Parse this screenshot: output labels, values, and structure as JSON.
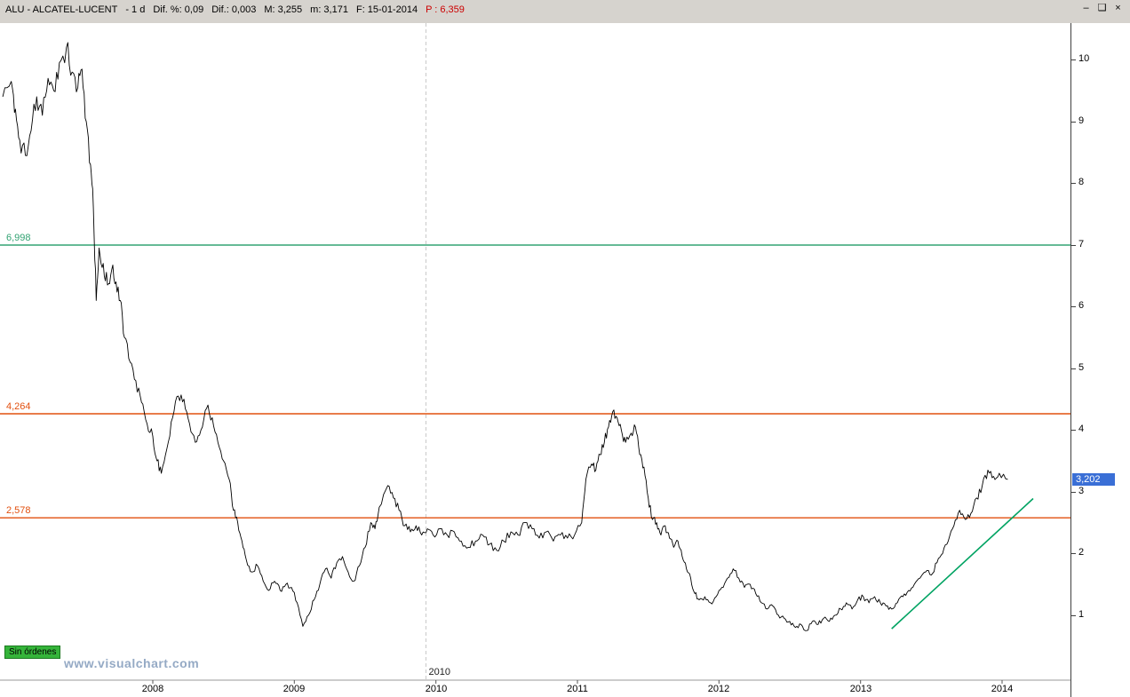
{
  "title_bar": {
    "segments": [
      {
        "name": "symbol-title",
        "text": "ALU - ALCATEL-LUCENT",
        "color": "#000000"
      },
      {
        "name": "timeframe",
        "text": "-  1 d",
        "color": "#000000"
      },
      {
        "name": "dif-pct",
        "text": "Dif. %: 0,09",
        "color": "#000000"
      },
      {
        "name": "dif-abs",
        "text": "Dif.: 0,003",
        "color": "#000000"
      },
      {
        "name": "max-value",
        "text": "M: 3,255",
        "color": "#000000"
      },
      {
        "name": "min-value",
        "text": "m: 3,171",
        "color": "#000000"
      },
      {
        "name": "date-value",
        "text": "F: 15-01-2014",
        "color": "#000000"
      },
      {
        "name": "p-value",
        "text": "P : 6,359",
        "color": "#cc0000"
      }
    ],
    "window_controls": [
      {
        "name": "minimize",
        "glyph": "–"
      },
      {
        "name": "maximize",
        "glyph": "❑"
      },
      {
        "name": "close",
        "glyph": "×"
      }
    ]
  },
  "status": {
    "orders_label": "Sin órdenes",
    "watermark": "www.visualchart.com"
  },
  "chart_data": {
    "type": "line",
    "title": "ALU - ALCATEL-LUCENT",
    "timeframe": "1 d",
    "last_price": "3,202",
    "last_price_value": 3.202,
    "last_price_badge_color": "#3a6fd6",
    "x_axis": {
      "labels": [
        "2008",
        "2009",
        "2010",
        "2011",
        "2012",
        "2013",
        "2014"
      ],
      "range": [
        2006.94,
        2014.45
      ]
    },
    "y_axis": {
      "ticks": [
        1,
        2,
        3,
        4,
        5,
        6,
        7,
        8,
        9,
        10
      ],
      "range": [
        0,
        10.55
      ],
      "side": "right"
    },
    "horizontal_levels": [
      {
        "label": "6,998",
        "value": 6.998,
        "color": "#33a373"
      },
      {
        "label": "4,264",
        "value": 4.264,
        "color": "#e2500f"
      },
      {
        "label": "2,578",
        "value": 2.578,
        "color": "#e2500f"
      }
    ],
    "vertical_marker": {
      "label": "2010",
      "x": 2009.93
    },
    "trendline": {
      "color": "#00a362",
      "from": [
        2013.22,
        0.78
      ],
      "to": [
        2014.22,
        2.89
      ]
    },
    "series": [
      {
        "name": "ALU daily close",
        "color": "#000000",
        "points": [
          [
            2006.94,
            9.4
          ],
          [
            2007.0,
            9.65
          ],
          [
            2007.03,
            9.2
          ],
          [
            2007.06,
            8.7
          ],
          [
            2007.1,
            8.45
          ],
          [
            2007.14,
            8.85
          ],
          [
            2007.18,
            9.4
          ],
          [
            2007.22,
            9.1
          ],
          [
            2007.26,
            9.7
          ],
          [
            2007.3,
            9.5
          ],
          [
            2007.34,
            9.95
          ],
          [
            2007.39,
            10.2
          ],
          [
            2007.43,
            9.8
          ],
          [
            2007.47,
            9.55
          ],
          [
            2007.5,
            9.85
          ],
          [
            2007.53,
            9.0
          ],
          [
            2007.56,
            8.3
          ],
          [
            2007.58,
            7.6
          ],
          [
            2007.6,
            6.1
          ],
          [
            2007.62,
            6.95
          ],
          [
            2007.65,
            6.7
          ],
          [
            2007.68,
            6.35
          ],
          [
            2007.71,
            6.6
          ],
          [
            2007.74,
            6.4
          ],
          [
            2007.77,
            6.1
          ],
          [
            2007.8,
            5.5
          ],
          [
            2007.84,
            5.1
          ],
          [
            2007.88,
            4.8
          ],
          [
            2007.92,
            4.45
          ],
          [
            2007.96,
            4.1
          ],
          [
            2008.0,
            3.9
          ],
          [
            2008.03,
            3.5
          ],
          [
            2008.06,
            3.3
          ],
          [
            2008.1,
            3.7
          ],
          [
            2008.14,
            4.2
          ],
          [
            2008.18,
            4.55
          ],
          [
            2008.22,
            4.5
          ],
          [
            2008.26,
            4.1
          ],
          [
            2008.3,
            3.8
          ],
          [
            2008.34,
            4.0
          ],
          [
            2008.38,
            4.35
          ],
          [
            2008.42,
            4.2
          ],
          [
            2008.46,
            3.8
          ],
          [
            2008.5,
            3.5
          ],
          [
            2008.54,
            3.2
          ],
          [
            2008.57,
            2.7
          ],
          [
            2008.6,
            2.5
          ],
          [
            2008.63,
            2.2
          ],
          [
            2008.66,
            1.9
          ],
          [
            2008.7,
            1.7
          ],
          [
            2008.74,
            1.8
          ],
          [
            2008.78,
            1.55
          ],
          [
            2008.82,
            1.4
          ],
          [
            2008.86,
            1.55
          ],
          [
            2008.9,
            1.4
          ],
          [
            2008.94,
            1.5
          ],
          [
            2008.98,
            1.45
          ],
          [
            2009.02,
            1.2
          ],
          [
            2009.06,
            0.82
          ],
          [
            2009.1,
            1.0
          ],
          [
            2009.14,
            1.25
          ],
          [
            2009.18,
            1.5
          ],
          [
            2009.22,
            1.75
          ],
          [
            2009.26,
            1.6
          ],
          [
            2009.3,
            1.85
          ],
          [
            2009.34,
            1.95
          ],
          [
            2009.38,
            1.7
          ],
          [
            2009.42,
            1.55
          ],
          [
            2009.46,
            1.8
          ],
          [
            2009.5,
            2.1
          ],
          [
            2009.54,
            2.5
          ],
          [
            2009.57,
            2.4
          ],
          [
            2009.6,
            2.75
          ],
          [
            2009.66,
            3.1
          ],
          [
            2009.7,
            2.9
          ],
          [
            2009.74,
            2.7
          ],
          [
            2009.78,
            2.45
          ],
          [
            2009.82,
            2.35
          ],
          [
            2009.86,
            2.45
          ],
          [
            2009.9,
            2.3
          ],
          [
            2009.94,
            2.4
          ],
          [
            2009.98,
            2.3
          ],
          [
            2010.03,
            2.4
          ],
          [
            2010.08,
            2.3
          ],
          [
            2010.13,
            2.35
          ],
          [
            2010.18,
            2.2
          ],
          [
            2010.23,
            2.1
          ],
          [
            2010.28,
            2.2
          ],
          [
            2010.33,
            2.3
          ],
          [
            2010.38,
            2.15
          ],
          [
            2010.43,
            2.05
          ],
          [
            2010.48,
            2.2
          ],
          [
            2010.53,
            2.35
          ],
          [
            2010.58,
            2.3
          ],
          [
            2010.63,
            2.5
          ],
          [
            2010.68,
            2.4
          ],
          [
            2010.73,
            2.25
          ],
          [
            2010.78,
            2.35
          ],
          [
            2010.83,
            2.2
          ],
          [
            2010.88,
            2.3
          ],
          [
            2010.93,
            2.25
          ],
          [
            2010.98,
            2.3
          ],
          [
            2011.03,
            2.5
          ],
          [
            2011.06,
            3.2
          ],
          [
            2011.1,
            3.45
          ],
          [
            2011.13,
            3.35
          ],
          [
            2011.16,
            3.6
          ],
          [
            2011.19,
            3.8
          ],
          [
            2011.22,
            4.05
          ],
          [
            2011.25,
            4.3
          ],
          [
            2011.28,
            4.2
          ],
          [
            2011.31,
            4.0
          ],
          [
            2011.34,
            3.8
          ],
          [
            2011.38,
            3.95
          ],
          [
            2011.41,
            4.05
          ],
          [
            2011.44,
            3.6
          ],
          [
            2011.47,
            3.4
          ],
          [
            2011.5,
            2.9
          ],
          [
            2011.53,
            2.55
          ],
          [
            2011.56,
            2.5
          ],
          [
            2011.59,
            2.3
          ],
          [
            2011.62,
            2.45
          ],
          [
            2011.65,
            2.25
          ],
          [
            2011.68,
            2.1
          ],
          [
            2011.71,
            2.2
          ],
          [
            2011.74,
            1.95
          ],
          [
            2011.77,
            1.75
          ],
          [
            2011.8,
            1.6
          ],
          [
            2011.83,
            1.35
          ],
          [
            2011.86,
            1.25
          ],
          [
            2011.9,
            1.3
          ],
          [
            2011.94,
            1.2
          ],
          [
            2011.98,
            1.3
          ],
          [
            2012.02,
            1.45
          ],
          [
            2012.06,
            1.6
          ],
          [
            2012.1,
            1.75
          ],
          [
            2012.14,
            1.6
          ],
          [
            2012.18,
            1.45
          ],
          [
            2012.22,
            1.5
          ],
          [
            2012.26,
            1.35
          ],
          [
            2012.3,
            1.2
          ],
          [
            2012.34,
            1.1
          ],
          [
            2012.38,
            1.15
          ],
          [
            2012.42,
            1.0
          ],
          [
            2012.46,
            0.95
          ],
          [
            2012.5,
            0.9
          ],
          [
            2012.54,
            0.8
          ],
          [
            2012.58,
            0.85
          ],
          [
            2012.62,
            0.75
          ],
          [
            2012.66,
            0.9
          ],
          [
            2012.7,
            0.85
          ],
          [
            2012.74,
            0.95
          ],
          [
            2012.78,
            0.9
          ],
          [
            2012.82,
            1.0
          ],
          [
            2012.86,
            1.1
          ],
          [
            2012.9,
            1.2
          ],
          [
            2012.94,
            1.1
          ],
          [
            2012.98,
            1.25
          ],
          [
            2013.02,
            1.3
          ],
          [
            2013.06,
            1.2
          ],
          [
            2013.1,
            1.3
          ],
          [
            2013.14,
            1.2
          ],
          [
            2013.18,
            1.15
          ],
          [
            2013.22,
            1.1
          ],
          [
            2013.26,
            1.2
          ],
          [
            2013.3,
            1.3
          ],
          [
            2013.34,
            1.4
          ],
          [
            2013.38,
            1.5
          ],
          [
            2013.42,
            1.6
          ],
          [
            2013.46,
            1.7
          ],
          [
            2013.5,
            1.65
          ],
          [
            2013.54,
            1.85
          ],
          [
            2013.58,
            2.0
          ],
          [
            2013.62,
            2.2
          ],
          [
            2013.66,
            2.45
          ],
          [
            2013.7,
            2.7
          ],
          [
            2013.74,
            2.55
          ],
          [
            2013.78,
            2.65
          ],
          [
            2013.82,
            2.9
          ],
          [
            2013.86,
            3.1
          ],
          [
            2013.9,
            3.35
          ],
          [
            2013.94,
            3.25
          ],
          [
            2013.98,
            3.3
          ],
          [
            2014.04,
            3.2
          ]
        ]
      }
    ]
  }
}
